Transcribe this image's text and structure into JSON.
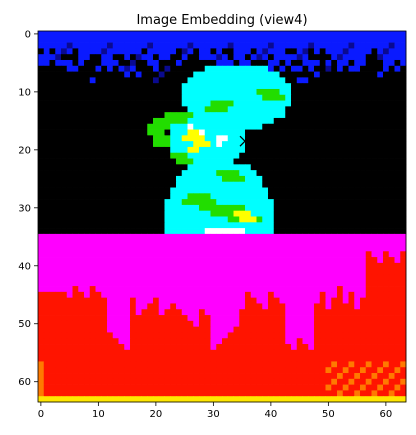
{
  "chart_data": {
    "type": "heatmap",
    "title": "Image Embedding (view4)",
    "xlabel": "",
    "ylabel": "",
    "xlim": [
      -0.5,
      63.5
    ],
    "ylim": [
      63.5,
      -0.5
    ],
    "xticks": [
      0,
      10,
      20,
      30,
      40,
      50,
      60
    ],
    "yticks": [
      0,
      10,
      20,
      30,
      40,
      50,
      60
    ],
    "xtick_labels": [
      "0",
      "10",
      "20",
      "30",
      "40",
      "50",
      "60"
    ],
    "ytick_labels": [
      "0",
      "10",
      "20",
      "30",
      "40",
      "50",
      "60"
    ],
    "grid": false,
    "colors": {
      "background_top": "#000000",
      "top_band": "#0a1aff",
      "bottom_region": "#ff00ff",
      "bottom_fill": "#ff1400",
      "bottom_edge": "#ffe600",
      "object_cyan": "#00ffff",
      "object_green": "#22dd00",
      "object_yellow": "#ffff00",
      "object_white": "#ffffff"
    },
    "marker": {
      "symbol": "x",
      "x": 35.5,
      "y": 18.5,
      "color": "#000000"
    }
  }
}
